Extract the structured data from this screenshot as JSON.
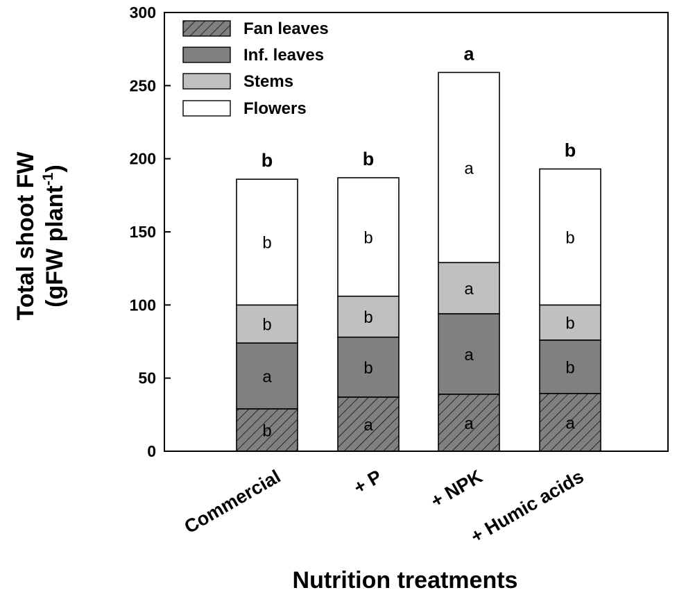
{
  "chart_data": {
    "type": "bar",
    "stacked": true,
    "categories": [
      "Commercial",
      "+ P",
      "+ NPK",
      "+ Humic acids"
    ],
    "series": [
      {
        "name": "Fan leaves",
        "fill": "hatched-gray",
        "color": "#808080",
        "values": [
          29,
          37,
          39,
          39.5
        ],
        "letters": [
          "b",
          "a",
          "a",
          "a"
        ]
      },
      {
        "name": "Inf. leaves",
        "fill": "solid",
        "color": "#808080",
        "values": [
          45,
          41,
          55,
          36.5
        ],
        "letters": [
          "a",
          "b",
          "a",
          "b"
        ]
      },
      {
        "name": "Stems",
        "fill": "solid",
        "color": "#c0c0c0",
        "values": [
          26,
          28,
          35,
          24
        ],
        "letters": [
          "b",
          "b",
          "a",
          "b"
        ]
      },
      {
        "name": "Flowers",
        "fill": "solid",
        "color": "#ffffff",
        "values": [
          86,
          81,
          130,
          93
        ],
        "letters": [
          "b",
          "b",
          "a",
          "b"
        ]
      }
    ],
    "totals": [
      186,
      187,
      259,
      193
    ],
    "total_letters": [
      "b",
      "b",
      "a",
      "b"
    ],
    "xlabel": "Nutrition treatments",
    "ylabel_line1": "Total shoot FW",
    "ylabel_line2_main": "(gFW plant",
    "ylabel_line2_sup": "-1",
    "ylabel_line2_end": ")",
    "ylim": [
      0,
      300
    ],
    "yticks": [
      0,
      50,
      100,
      150,
      200,
      250,
      300
    ],
    "legend_position": "top-left",
    "grid": false
  }
}
